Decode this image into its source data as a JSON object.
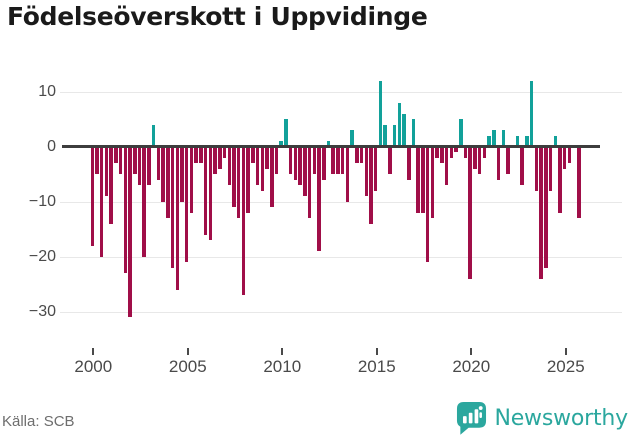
{
  "title": "Födelseöverskott i Uppvidinge",
  "footer": {
    "source": "Källa: SCB",
    "brand": "Newsworthy"
  },
  "colors": {
    "positive": "#12a19a",
    "negative": "#a00e48",
    "brand": "#2ba79e",
    "grid": "#e8e8e8",
    "zero_line": "#3d3d3d",
    "axis_text": "#4a4a4a",
    "title_text": "#1a1a1a",
    "source_text": "#6e6e6e"
  },
  "chart_data": {
    "type": "bar",
    "title": "Födelseöverskott i Uppvidinge",
    "x_start": "2000 Q1",
    "x_frequency": "quarterly",
    "x_tick_labels": [
      "2000",
      "2005",
      "2010",
      "2015",
      "2020",
      "2025"
    ],
    "y_tick_values": [
      10,
      0,
      -10,
      -20,
      -30
    ],
    "y_tick_labels": [
      "10",
      "0",
      "−10",
      "−20",
      "−30"
    ],
    "ylim": [
      -33,
      13
    ],
    "grid": true,
    "legend": false,
    "positive_color": "#12a19a",
    "negative_color": "#a00e48",
    "values": [
      -18,
      -5,
      -20,
      -9,
      -14,
      -3,
      -5,
      -23,
      -31,
      -5,
      -7,
      -20,
      -7,
      4,
      -6,
      -10,
      -13,
      -22,
      -26,
      -10,
      -21,
      -12,
      -3,
      -3,
      -16,
      -17,
      -5,
      -4,
      -2,
      -7,
      -11,
      -13,
      -27,
      -12,
      -3,
      -7,
      -8,
      -4,
      -11,
      -5,
      1,
      5,
      -5,
      -6,
      -7,
      -9,
      -13,
      -5,
      -19,
      -6,
      1,
      -5,
      -5,
      -5,
      -10,
      3,
      -3,
      -3,
      -9,
      -14,
      -8,
      12,
      4,
      -5,
      4,
      8,
      6,
      -6,
      5,
      -12,
      -12,
      -21,
      -13,
      -2,
      -3,
      -7,
      -2,
      -1,
      5,
      -2,
      -24,
      -4,
      -5,
      -2,
      2,
      3,
      -6,
      3,
      -5,
      0,
      2,
      -7,
      2,
      12,
      -8,
      -24,
      -22,
      -8,
      2,
      -12,
      -4,
      -3,
      0,
      -13
    ]
  }
}
